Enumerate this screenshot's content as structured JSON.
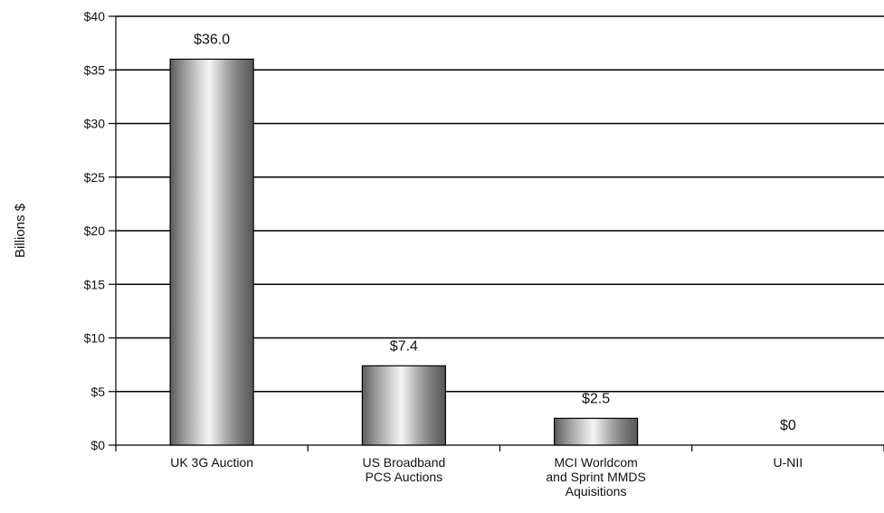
{
  "chart_data": {
    "type": "bar",
    "categories": [
      [
        "UK 3G Auction"
      ],
      [
        "US Broadband",
        "PCS Auctions"
      ],
      [
        "MCI Worldcom",
        "and Sprint MMDS",
        "Aquisitions"
      ],
      [
        "U-NII"
      ]
    ],
    "values": [
      36.0,
      7.4,
      2.5,
      0
    ],
    "data_labels": [
      "$36.0",
      "$7.4",
      "$2.5",
      "$0"
    ],
    "ylabel": "Billions $",
    "ylim": [
      0,
      40
    ],
    "yticks": [
      0,
      5,
      10,
      15,
      20,
      25,
      30,
      35,
      40
    ],
    "ytick_labels": [
      "$0",
      "$5",
      "$10",
      "$15",
      "$20",
      "$25",
      "$30",
      "$35",
      "$40"
    ],
    "grid": true,
    "legend": "none"
  }
}
